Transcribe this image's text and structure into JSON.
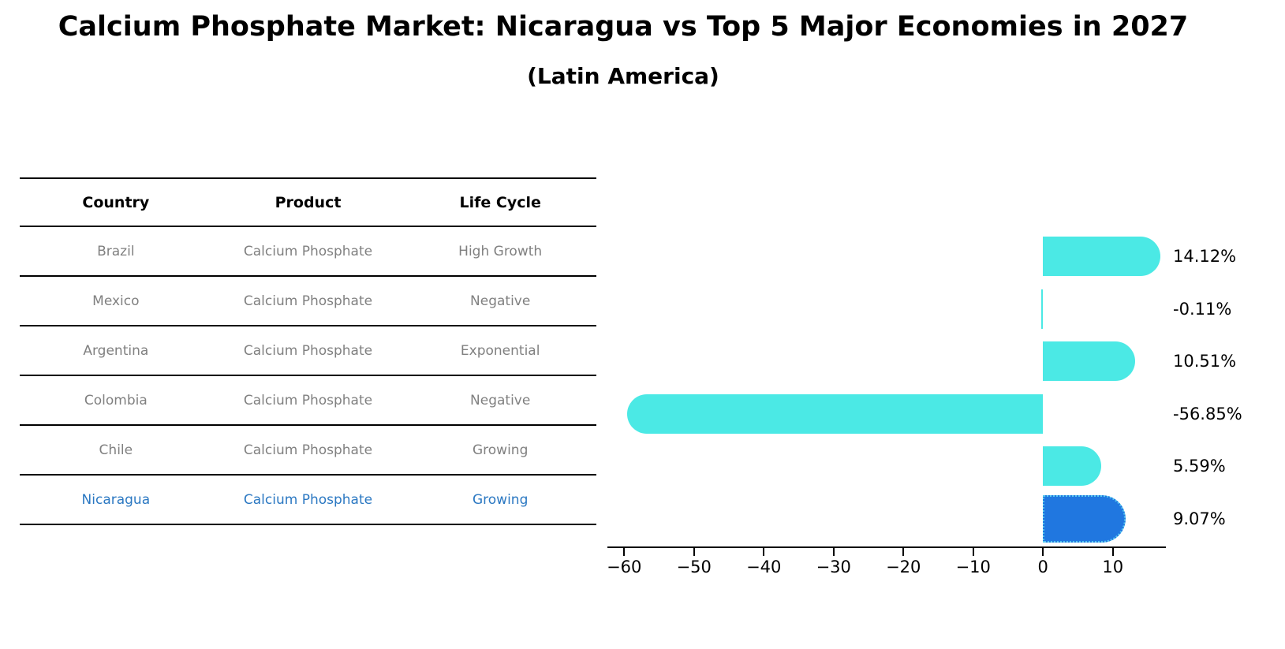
{
  "header": {
    "title": "Calcium Phosphate Market: Nicaragua vs Top 5 Major Economies in 2027",
    "subtitle": "(Latin America)"
  },
  "table": {
    "headers": [
      "Country",
      "Product",
      "Life Cycle"
    ],
    "rows": [
      {
        "country": "Brazil",
        "product": "Calcium Phosphate",
        "life_cycle": "High Growth",
        "highlighted": false
      },
      {
        "country": "Mexico",
        "product": "Calcium Phosphate",
        "life_cycle": "Negative",
        "highlighted": false
      },
      {
        "country": "Argentina",
        "product": "Calcium Phosphate",
        "life_cycle": "Exponential",
        "highlighted": false
      },
      {
        "country": "Colombia",
        "product": "Calcium Phosphate",
        "life_cycle": "Negative",
        "highlighted": false
      },
      {
        "country": "Chile",
        "product": "Calcium Phosphate",
        "life_cycle": "Growing",
        "highlighted": false
      },
      {
        "country": "Nicaragua",
        "product": "Calcium Phosphate",
        "life_cycle": "Growing",
        "highlighted": true
      }
    ]
  },
  "chart_data": {
    "type": "bar",
    "orientation": "horizontal",
    "title": "Calcium Phosphate Market: Nicaragua vs Top 5 Major Economies in 2027 (Latin America)",
    "categories": [
      "Brazil",
      "Mexico",
      "Argentina",
      "Colombia",
      "Chile",
      "Nicaragua"
    ],
    "values": [
      14.12,
      -0.11,
      10.51,
      -56.85,
      5.59,
      9.07
    ],
    "value_labels": [
      "14.12%",
      "-0.11%",
      "10.51%",
      "-56.85%",
      "5.59%",
      "9.07%"
    ],
    "x_ticks": [
      -60,
      -50,
      -40,
      -30,
      -20,
      -10,
      0,
      10
    ],
    "x_tick_labels": [
      "−60",
      "−50",
      "−40",
      "−30",
      "−20",
      "−10",
      "0",
      "10"
    ],
    "xlim": [
      -62.4,
      17.6
    ],
    "xlabel": "",
    "ylabel": "",
    "grid": false,
    "legend": null,
    "highlight_index": 5,
    "bar_color": "#4BE9E5",
    "highlight_bar_color": "#2077E0",
    "highlight_border_color": "#56C8F0"
  },
  "colors": {
    "highlight_text": "#2B78C2",
    "muted_text": "#808080",
    "axis": "#000000"
  }
}
